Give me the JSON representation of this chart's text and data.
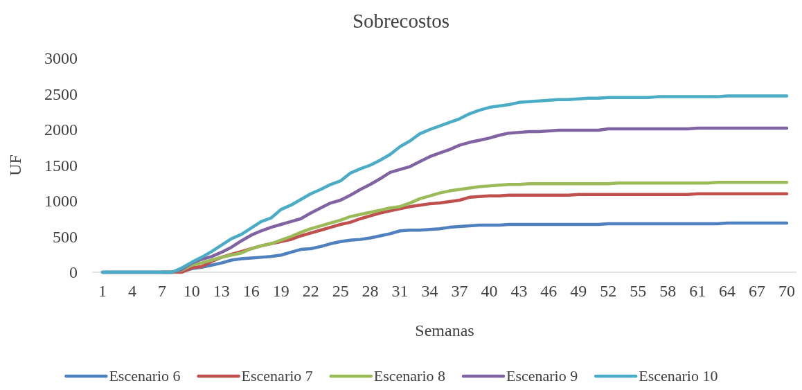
{
  "chart_data": {
    "type": "line",
    "title": "Sobrecostos",
    "xlabel": "Semanas",
    "ylabel": "UF",
    "categories": [
      "1",
      null,
      null,
      "4",
      null,
      null,
      "7",
      null,
      null,
      "10",
      null,
      null,
      "13",
      null,
      null,
      "16",
      null,
      null,
      "19",
      null,
      null,
      "22",
      null,
      null,
      "25",
      null,
      null,
      "28",
      null,
      null,
      "31",
      null,
      null,
      "34",
      null,
      null,
      "37",
      null,
      null,
      "40",
      null,
      null,
      "43",
      null,
      null,
      "46",
      null,
      null,
      "49",
      null,
      null,
      "52",
      null,
      null,
      "55",
      null,
      null,
      "58",
      null,
      null,
      "61",
      null,
      null,
      "64",
      null,
      null,
      "67",
      null,
      null,
      "70"
    ],
    "ylim": [
      0,
      3000
    ],
    "yticks": [
      0,
      500,
      1000,
      1500,
      2000,
      2500,
      3000
    ],
    "grid": false,
    "legend": "bottom",
    "line_style": "solid",
    "marker": "none",
    "series": [
      {
        "name": "Escenario 6",
        "color": "#4e81bd",
        "values": [
          0,
          0,
          0,
          0,
          0,
          0,
          0,
          0,
          10,
          50,
          70,
          100,
          130,
          170,
          190,
          200,
          210,
          220,
          240,
          280,
          320,
          330,
          360,
          400,
          430,
          450,
          460,
          480,
          510,
          540,
          580,
          590,
          590,
          600,
          610,
          630,
          640,
          650,
          660,
          660,
          660,
          670,
          670,
          670,
          670,
          670,
          670,
          670,
          670,
          670,
          670,
          680,
          680,
          680,
          680,
          680,
          680,
          680,
          680,
          680,
          680,
          680,
          680,
          690,
          690,
          690,
          690,
          690,
          690,
          690
        ]
      },
      {
        "name": "Escenario 7",
        "color": "#c0504e",
        "values": [
          null,
          null,
          null,
          null,
          null,
          null,
          0,
          0,
          0,
          60,
          80,
          150,
          210,
          250,
          290,
          330,
          370,
          400,
          430,
          460,
          510,
          550,
          590,
          630,
          670,
          700,
          750,
          790,
          830,
          860,
          890,
          920,
          940,
          960,
          970,
          990,
          1010,
          1050,
          1060,
          1070,
          1070,
          1080,
          1080,
          1080,
          1080,
          1080,
          1080,
          1080,
          1090,
          1090,
          1090,
          1090,
          1090,
          1090,
          1090,
          1090,
          1090,
          1090,
          1090,
          1090,
          1100,
          1100,
          1100,
          1100,
          1100,
          1100,
          1100,
          1100,
          1100,
          1100
        ]
      },
      {
        "name": "Escenario 8",
        "color": "#9bbb59",
        "values": [
          null,
          null,
          null,
          null,
          null,
          null,
          0,
          0,
          30,
          100,
          130,
          170,
          210,
          240,
          270,
          330,
          370,
          400,
          450,
          500,
          560,
          610,
          650,
          690,
          730,
          780,
          810,
          840,
          870,
          900,
          920,
          970,
          1030,
          1070,
          1110,
          1140,
          1160,
          1180,
          1200,
          1210,
          1220,
          1230,
          1230,
          1240,
          1240,
          1240,
          1240,
          1240,
          1240,
          1240,
          1240,
          1240,
          1250,
          1250,
          1250,
          1250,
          1250,
          1250,
          1250,
          1250,
          1250,
          1250,
          1260,
          1260,
          1260,
          1260,
          1260,
          1260,
          1260,
          1260
        ]
      },
      {
        "name": "Escenario 9",
        "color": "#8064a2",
        "values": [
          0,
          0,
          0,
          0,
          0,
          0,
          0,
          0,
          40,
          130,
          180,
          220,
          280,
          350,
          440,
          520,
          580,
          630,
          670,
          710,
          750,
          830,
          900,
          970,
          1010,
          1080,
          1160,
          1230,
          1310,
          1400,
          1440,
          1480,
          1550,
          1620,
          1670,
          1720,
          1780,
          1820,
          1850,
          1880,
          1920,
          1950,
          1960,
          1970,
          1970,
          1980,
          1990,
          1990,
          1990,
          1990,
          1990,
          2010,
          2010,
          2010,
          2010,
          2010,
          2010,
          2010,
          2010,
          2010,
          2020,
          2020,
          2020,
          2020,
          2020,
          2020,
          2020,
          2020,
          2020,
          2020
        ]
      },
      {
        "name": "Escenario 10",
        "color": "#4bacc6",
        "values": [
          0,
          0,
          0,
          0,
          0,
          0,
          0,
          0,
          60,
          140,
          210,
          290,
          380,
          470,
          530,
          620,
          710,
          760,
          880,
          940,
          1020,
          1100,
          1160,
          1230,
          1280,
          1390,
          1450,
          1500,
          1570,
          1650,
          1760,
          1840,
          1940,
          2000,
          2050,
          2100,
          2150,
          2220,
          2270,
          2310,
          2330,
          2350,
          2380,
          2390,
          2400,
          2410,
          2420,
          2420,
          2430,
          2440,
          2440,
          2450,
          2450,
          2450,
          2450,
          2450,
          2460,
          2460,
          2460,
          2460,
          2460,
          2460,
          2460,
          2470,
          2470,
          2470,
          2470,
          2470,
          2470,
          2470
        ]
      }
    ]
  }
}
